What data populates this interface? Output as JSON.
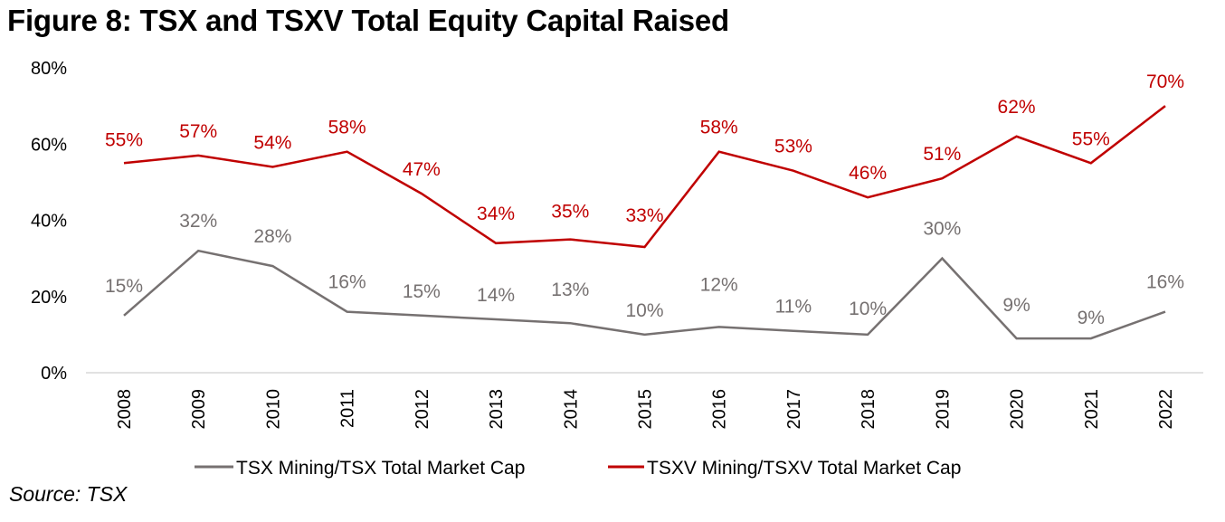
{
  "figure": {
    "title": "Figure 8: TSX and TSXV Total Equity Capital Raised",
    "source": "Source: TSX"
  },
  "chart_data": {
    "type": "line",
    "title": "Figure 8: TSX and TSXV Total Equity Capital Raised",
    "xlabel": "",
    "ylabel": "",
    "categories": [
      "2008",
      "2009",
      "2010",
      "2011",
      "2012",
      "2013",
      "2014",
      "2015",
      "2016",
      "2017",
      "2018",
      "2019",
      "2020",
      "2021",
      "2022"
    ],
    "ylim": [
      0,
      80
    ],
    "yticks": [
      0,
      20,
      40,
      60,
      80
    ],
    "ytick_labels": [
      "0%",
      "20%",
      "40%",
      "60%",
      "80%"
    ],
    "grid": false,
    "legend_position": "bottom",
    "series": [
      {
        "name": "TSX Mining/TSX Total Market Cap",
        "color": "#767171",
        "values": [
          15,
          32,
          28,
          16,
          15,
          14,
          13,
          10,
          12,
          11,
          10,
          30,
          9,
          9,
          16
        ],
        "labels": [
          "15%",
          "32%",
          "28%",
          "16%",
          "15%",
          "14%",
          "13%",
          "10%",
          "12%",
          "11%",
          "10%",
          "30%",
          "9%",
          "9%",
          "16%"
        ]
      },
      {
        "name": "TSXV Mining/TSXV Total Market Cap",
        "color": "#C00000",
        "values": [
          55,
          57,
          54,
          58,
          47,
          34,
          35,
          33,
          58,
          53,
          46,
          51,
          62,
          55,
          70
        ],
        "labels": [
          "55%",
          "57%",
          "54%",
          "58%",
          "47%",
          "34%",
          "35%",
          "33%",
          "58%",
          "53%",
          "46%",
          "51%",
          "62%",
          "55%",
          "70%"
        ]
      }
    ]
  }
}
